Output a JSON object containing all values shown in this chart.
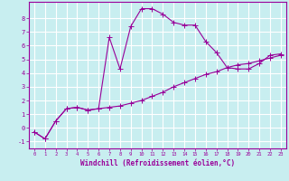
{
  "xlabel": "Windchill (Refroidissement éolien,°C)",
  "ylabel": "",
  "bg_color": "#c8eef0",
  "grid_color": "#ffffff",
  "line_color": "#990099",
  "xlim": [
    -0.5,
    23.5
  ],
  "ylim": [
    -1.5,
    9.2
  ],
  "xticks": [
    0,
    1,
    2,
    3,
    4,
    5,
    6,
    7,
    8,
    9,
    10,
    11,
    12,
    13,
    14,
    15,
    16,
    17,
    18,
    19,
    20,
    21,
    22,
    23
  ],
  "yticks": [
    -1,
    0,
    1,
    2,
    3,
    4,
    5,
    6,
    7,
    8
  ],
  "line1_x": [
    0,
    1,
    2,
    3,
    4,
    5,
    6,
    7,
    8,
    9,
    10,
    11,
    12,
    13,
    14,
    15,
    16,
    17,
    18,
    19,
    20,
    21,
    22,
    23
  ],
  "line1_y": [
    -0.3,
    -0.8,
    0.5,
    1.4,
    1.5,
    1.3,
    1.4,
    6.6,
    4.3,
    7.4,
    8.7,
    8.7,
    8.3,
    7.7,
    7.5,
    7.5,
    6.3,
    5.5,
    4.4,
    4.3,
    4.3,
    4.7,
    5.3,
    5.4
  ],
  "line2_x": [
    0,
    1,
    2,
    3,
    4,
    5,
    6,
    7,
    8,
    9,
    10,
    11,
    12,
    13,
    14,
    15,
    16,
    17,
    18,
    19,
    20,
    21,
    22,
    23
  ],
  "line2_y": [
    -0.3,
    -0.8,
    0.5,
    1.4,
    1.5,
    1.3,
    1.4,
    1.5,
    1.6,
    1.8,
    2.0,
    2.3,
    2.6,
    3.0,
    3.3,
    3.6,
    3.9,
    4.1,
    4.4,
    4.6,
    4.7,
    4.9,
    5.1,
    5.3
  ],
  "marker": "+",
  "markersize": 4,
  "linewidth": 0.8,
  "axis_fontsize": 5.5,
  "tick_fontsize": 5,
  "xtick_fontsize": 4.0,
  "ytick_fontsize": 5.0
}
